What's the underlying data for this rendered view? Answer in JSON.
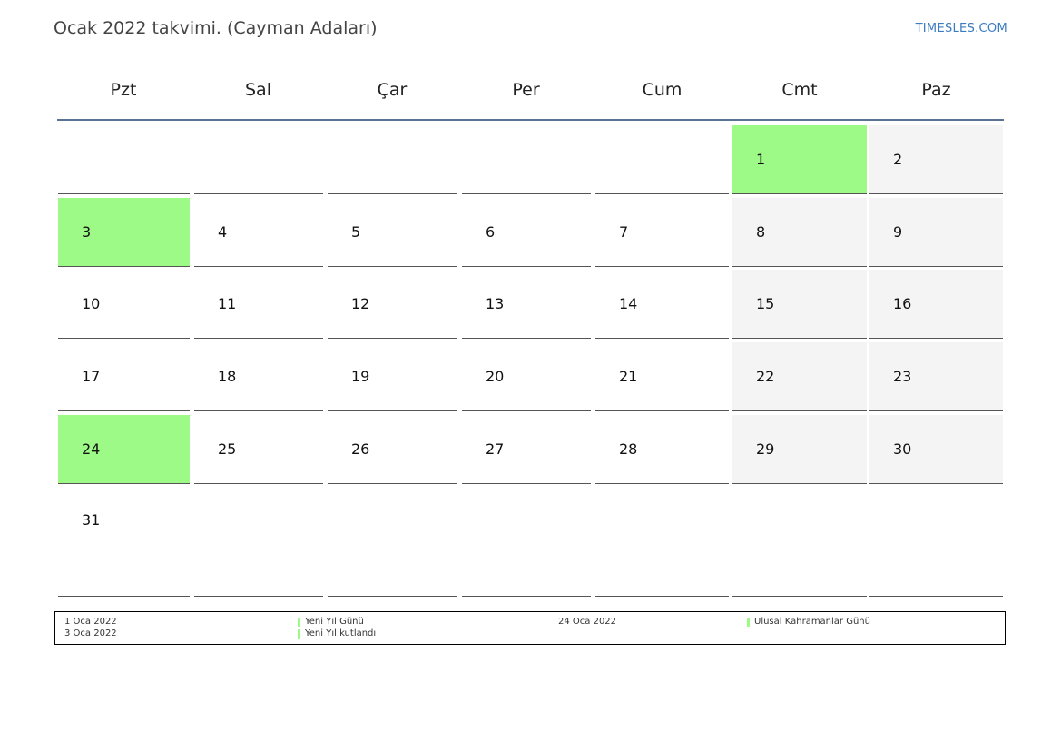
{
  "title": "Ocak 2022 takvimi. (Cayman Adaları)",
  "brand": "TIMESLES.COM",
  "colors": {
    "holiday": "#9dfa87",
    "weekend": "#f4f4f4",
    "header_rule": "#5a7294",
    "brand": "#3b7bbf"
  },
  "weekdays": [
    "Pzt",
    "Sal",
    "Çar",
    "Per",
    "Cum",
    "Cmt",
    "Paz"
  ],
  "weeks": [
    [
      "",
      "",
      "",
      "",
      "",
      "1",
      "2"
    ],
    [
      "3",
      "4",
      "5",
      "6",
      "7",
      "8",
      "9"
    ],
    [
      "10",
      "11",
      "12",
      "13",
      "14",
      "15",
      "16"
    ],
    [
      "17",
      "18",
      "19",
      "20",
      "21",
      "22",
      "23"
    ],
    [
      "24",
      "25",
      "26",
      "27",
      "28",
      "29",
      "30"
    ],
    [
      "31",
      "",
      "",
      "",
      "",
      "",
      ""
    ]
  ],
  "holiday_days": [
    "1",
    "3",
    "24"
  ],
  "legend": {
    "col1": [
      "1 Oca 2022",
      "3 Oca 2022"
    ],
    "col2": [
      "Yeni Yıl Günü",
      "Yeni Yıl kutlandı"
    ],
    "col3": [
      "24 Oca 2022"
    ],
    "col4": [
      "Ulusal Kahramanlar Günü"
    ]
  }
}
